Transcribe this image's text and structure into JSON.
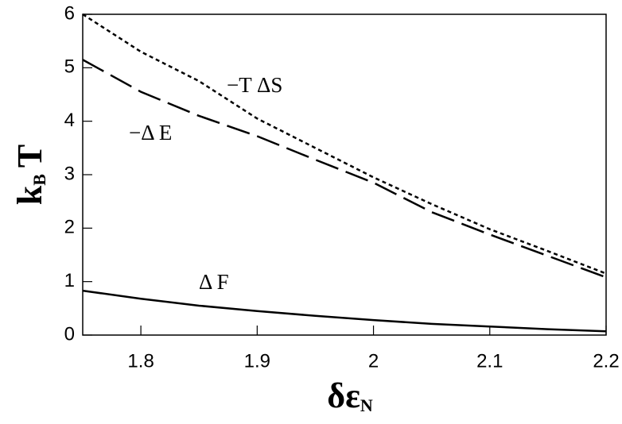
{
  "chart_data": {
    "type": "line",
    "xlabel": {
      "main": "δε",
      "sub": "N"
    },
    "ylabel": {
      "main": "k",
      "sub": "B",
      "tail": "T"
    },
    "x": [
      1.75,
      1.8,
      1.85,
      1.9,
      1.95,
      2.0,
      2.05,
      2.1,
      2.15,
      2.2
    ],
    "series": [
      {
        "name": "−T ΔS",
        "color": "#000000",
        "style": "dotted",
        "values": [
          6.0,
          5.3,
          4.75,
          4.05,
          3.5,
          2.95,
          2.45,
          1.98,
          1.57,
          1.15
        ]
      },
      {
        "name": "−Δ E",
        "color": "#000000",
        "style": "dashed",
        "values": [
          5.15,
          4.55,
          4.1,
          3.72,
          3.28,
          2.85,
          2.3,
          1.88,
          1.48,
          1.08
        ]
      },
      {
        "name": "Δ F",
        "color": "#000000",
        "style": "solid",
        "values": [
          0.83,
          0.68,
          0.55,
          0.45,
          0.36,
          0.28,
          0.21,
          0.16,
          0.11,
          0.07
        ]
      }
    ],
    "xlim": [
      1.75,
      2.2
    ],
    "xticks": [
      1.8,
      1.9,
      2,
      2.1,
      2.2
    ],
    "ylim": [
      0,
      6
    ],
    "yticks": [
      0,
      1,
      2,
      3,
      4,
      5,
      6
    ]
  }
}
